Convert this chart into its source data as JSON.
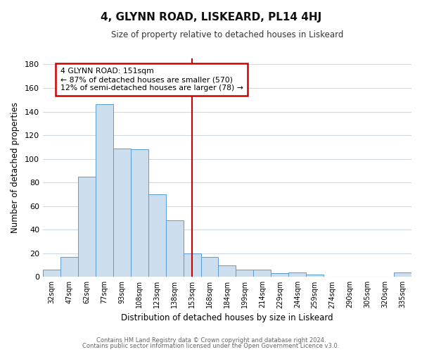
{
  "title": "4, GLYNN ROAD, LISKEARD, PL14 4HJ",
  "subtitle": "Size of property relative to detached houses in Liskeard",
  "xlabel": "Distribution of detached houses by size in Liskeard",
  "ylabel": "Number of detached properties",
  "bar_labels": [
    "32sqm",
    "47sqm",
    "62sqm",
    "77sqm",
    "93sqm",
    "108sqm",
    "123sqm",
    "138sqm",
    "153sqm",
    "168sqm",
    "184sqm",
    "199sqm",
    "214sqm",
    "229sqm",
    "244sqm",
    "259sqm",
    "274sqm",
    "290sqm",
    "305sqm",
    "320sqm",
    "335sqm"
  ],
  "bar_values": [
    6,
    17,
    85,
    146,
    109,
    108,
    70,
    48,
    20,
    17,
    10,
    6,
    6,
    3,
    4,
    2,
    0,
    0,
    0,
    0,
    4
  ],
  "bar_color": "#ccdded",
  "bar_edge_color": "#5b9bd5",
  "vline_x_index": 8,
  "vline_color": "#cc0000",
  "ylim": [
    0,
    185
  ],
  "yticks": [
    0,
    20,
    40,
    60,
    80,
    100,
    120,
    140,
    160,
    180
  ],
  "annotation_title": "4 GLYNN ROAD: 151sqm",
  "annotation_line1": "← 87% of detached houses are smaller (570)",
  "annotation_line2": "12% of semi-detached houses are larger (78) →",
  "annotation_box_color": "#ffffff",
  "annotation_box_edge": "#cc0000",
  "bg_color": "#ffffff",
  "grid_color": "#d0d8e0",
  "footer1": "Contains HM Land Registry data © Crown copyright and database right 2024.",
  "footer2": "Contains public sector information licensed under the Open Government Licence v3.0."
}
